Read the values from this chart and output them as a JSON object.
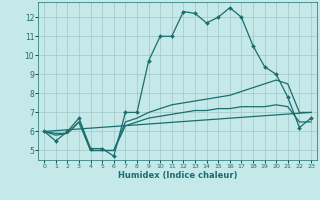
{
  "xlabel": "Humidex (Indice chaleur)",
  "xlim": [
    -0.5,
    23.5
  ],
  "ylim": [
    4.5,
    12.8
  ],
  "bg_color": "#c5e8e8",
  "grid_color": "#a8cccc",
  "line_color": "#1a6e6e",
  "xticks": [
    0,
    1,
    2,
    3,
    4,
    5,
    6,
    7,
    8,
    9,
    10,
    11,
    12,
    13,
    14,
    15,
    16,
    17,
    18,
    19,
    20,
    21,
    22,
    23
  ],
  "yticks": [
    5,
    6,
    7,
    8,
    9,
    10,
    11,
    12
  ],
  "line1_x": [
    0,
    1,
    2,
    3,
    4,
    5,
    6,
    7,
    8,
    9,
    10,
    11,
    12,
    13,
    14,
    15,
    16,
    17,
    18,
    19,
    20,
    21,
    22,
    23
  ],
  "line1_y": [
    6.0,
    5.5,
    6.0,
    6.7,
    5.1,
    5.1,
    4.7,
    7.0,
    7.0,
    9.7,
    11.0,
    11.0,
    12.3,
    12.2,
    11.7,
    12.0,
    12.5,
    12.0,
    10.5,
    9.4,
    9.0,
    7.8,
    6.2,
    6.7
  ],
  "line2_x": [
    0,
    1,
    2,
    3,
    4,
    5,
    6,
    7,
    8,
    9,
    10,
    11,
    12,
    13,
    14,
    15,
    16,
    17,
    18,
    19,
    20,
    21,
    22,
    23
  ],
  "line2_y": [
    6.0,
    5.8,
    5.9,
    6.5,
    5.0,
    5.0,
    5.0,
    6.5,
    6.7,
    7.0,
    7.2,
    7.4,
    7.5,
    7.6,
    7.7,
    7.8,
    7.9,
    8.1,
    8.3,
    8.5,
    8.7,
    8.5,
    7.0,
    7.0
  ],
  "line3_x": [
    0,
    1,
    2,
    3,
    4,
    5,
    6,
    7,
    8,
    9,
    10,
    11,
    12,
    13,
    14,
    15,
    16,
    17,
    18,
    19,
    20,
    21,
    22,
    23
  ],
  "line3_y": [
    6.0,
    5.9,
    5.9,
    6.5,
    5.0,
    5.0,
    5.0,
    6.3,
    6.5,
    6.7,
    6.8,
    6.9,
    7.0,
    7.1,
    7.1,
    7.2,
    7.2,
    7.3,
    7.3,
    7.3,
    7.4,
    7.3,
    6.5,
    6.5
  ],
  "line4_x": [
    0,
    23
  ],
  "line4_y": [
    6.0,
    7.0
  ]
}
